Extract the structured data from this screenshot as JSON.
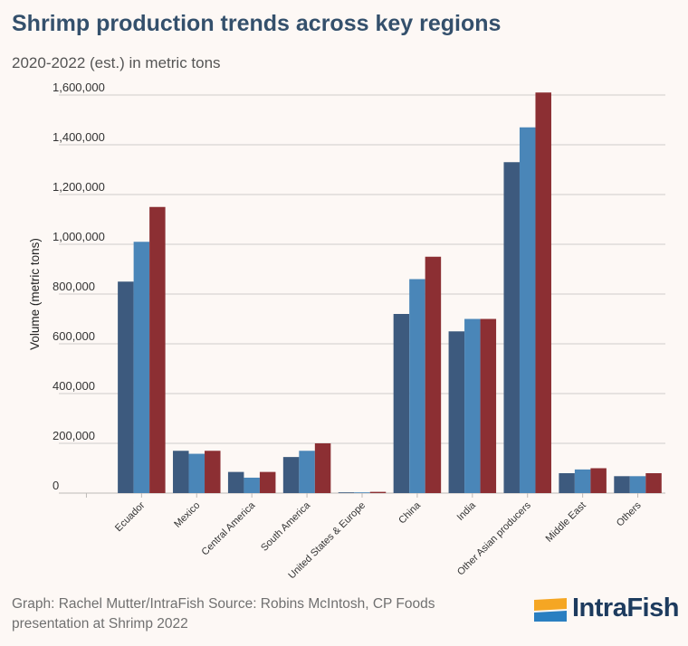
{
  "header": {
    "title": "Shrimp production trends across key regions",
    "subtitle": "2020-2022 (est.) in metric tons"
  },
  "footer": {
    "source": "Graph: Rachel Mutter/IntraFish Source: Robins McIntosh, CP Foods presentation at Shrimp 2022"
  },
  "logo": {
    "text": "IntraFish",
    "colors": [
      "#f5a623",
      "#2a7fc1"
    ]
  },
  "chart_data": {
    "type": "bar",
    "title": "",
    "xlabel": "",
    "ylabel": "Volume (metric tons)",
    "ylim": [
      0,
      1600000
    ],
    "yticks": [
      0,
      200000,
      400000,
      600000,
      800000,
      1000000,
      1200000,
      1400000,
      1600000
    ],
    "ytick_labels": [
      "0",
      "200,000",
      "400,000",
      "600,000",
      "800,000",
      "1,000,000",
      "1,200,000",
      "1,400,000",
      "1,600,000"
    ],
    "grid": true,
    "legend": "none",
    "categories": [
      "",
      "Ecuador",
      "Mexico",
      "Central America",
      "South America",
      "United States & Europe",
      "China",
      "India",
      "Other Asian producers",
      "Middle East",
      "Others"
    ],
    "series": [
      {
        "color": "#3d5a7e",
        "values": [
          0,
          850000,
          170000,
          85000,
          145000,
          3000,
          720000,
          650000,
          1330000,
          80000,
          68000
        ]
      },
      {
        "color": "#4a86b8",
        "values": [
          0,
          1010000,
          158000,
          62000,
          170000,
          3000,
          860000,
          700000,
          1470000,
          95000,
          68000
        ]
      },
      {
        "color": "#8c2f33",
        "values": [
          0,
          1150000,
          170000,
          85000,
          200000,
          5000,
          950000,
          700000,
          1610000,
          100000,
          80000
        ]
      }
    ]
  }
}
